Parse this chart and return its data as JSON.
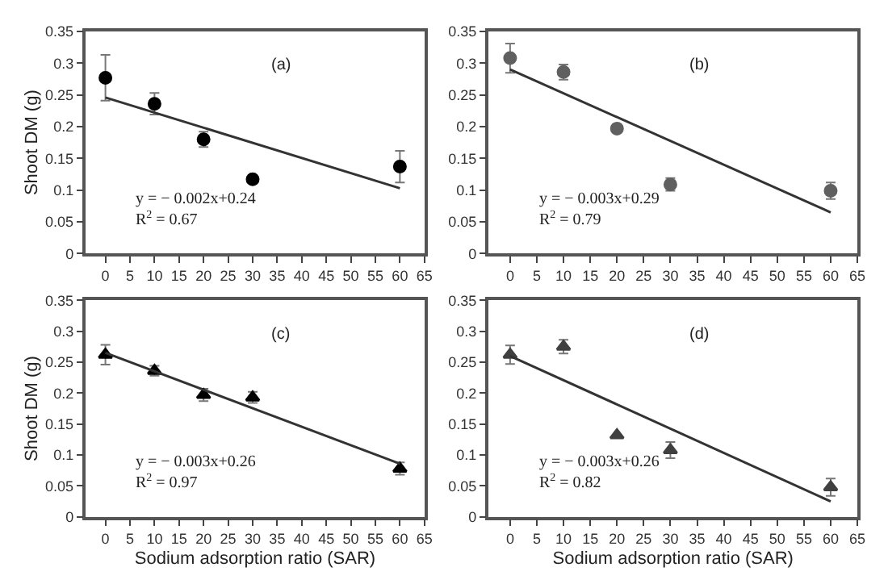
{
  "chart_data": [
    {
      "type": "scatter",
      "ylabel": "Shoot DM (g)",
      "annotations": [
        "(a)",
        "y = − 0.002x+0.24\nR$^{2}$ = 0.67"
      ],
      "xlim": [
        -4,
        65
      ],
      "xticks": [
        0,
        5,
        10,
        15,
        20,
        25,
        30,
        35,
        40,
        45,
        50,
        55,
        60,
        65
      ],
      "ylim": [
        0,
        0.35
      ],
      "yticks": [
        0,
        0.05,
        0.1,
        0.15,
        0.2,
        0.25,
        0.3,
        0.35
      ],
      "series": [
        {
          "marker": "circle",
          "color": "#000000",
          "x": [
            0,
            10,
            20,
            30,
            60
          ],
          "values": [
            0.277,
            0.236,
            0.18,
            0.117,
            0.137
          ],
          "errors": [
            0.036,
            0.017,
            0.012,
            null,
            0.025
          ]
        },
        {
          "type": "line",
          "color": "#333333",
          "x": [
            0,
            60
          ],
          "values": [
            0.246,
            0.103
          ]
        }
      ]
    },
    {
      "type": "scatter",
      "annotations": [
        "(b)",
        "y = − 0.003x+0.29\nR$^{2}$ = 0.79"
      ],
      "xlim": [
        -4,
        65
      ],
      "xticks": [
        0,
        5,
        10,
        15,
        20,
        25,
        30,
        35,
        40,
        45,
        50,
        55,
        60,
        65
      ],
      "ylim": [
        0,
        0.35
      ],
      "yticks": [
        0,
        0.05,
        0.1,
        0.15,
        0.2,
        0.25,
        0.3,
        0.35
      ],
      "series": [
        {
          "marker": "circle",
          "color": "#606060",
          "x": [
            0,
            10,
            20,
            30,
            60
          ],
          "values": [
            0.308,
            0.286,
            0.197,
            0.109,
            0.099
          ],
          "errors": [
            0.023,
            0.012,
            null,
            0.01,
            0.013
          ]
        },
        {
          "type": "line",
          "color": "#333333",
          "x": [
            0,
            60
          ],
          "values": [
            0.29,
            0.065
          ]
        }
      ]
    },
    {
      "type": "scatter",
      "xlabel": "Sodium adsorption ratio (SAR)",
      "ylabel": "Shoot DM (g)",
      "annotations": [
        "(c)",
        "y = − 0.003x+0.26\nR$^{2}$ = 0.97"
      ],
      "xlim": [
        -4,
        65
      ],
      "xticks": [
        0,
        5,
        10,
        15,
        20,
        25,
        30,
        35,
        40,
        45,
        50,
        55,
        60,
        65
      ],
      "ylim": [
        0,
        0.35
      ],
      "yticks": [
        0,
        0.05,
        0.1,
        0.15,
        0.2,
        0.25,
        0.3,
        0.35
      ],
      "series": [
        {
          "marker": "triangle",
          "color": "#000000",
          "x": [
            0,
            10,
            20,
            30,
            60
          ],
          "values": [
            0.262,
            0.236,
            0.197,
            0.193,
            0.078
          ],
          "errors": [
            0.016,
            0.008,
            0.01,
            0.009,
            0.01
          ]
        },
        {
          "type": "line",
          "color": "#333333",
          "x": [
            0,
            60
          ],
          "values": [
            0.265,
            0.086
          ]
        }
      ]
    },
    {
      "type": "scatter",
      "xlabel": "Sodium adsorption ratio (SAR)",
      "annotations": [
        "(d)",
        "y = − 0.003x+0.26\nR$^{2}$ = 0.82"
      ],
      "xlim": [
        -4,
        65
      ],
      "xticks": [
        0,
        5,
        10,
        15,
        20,
        25,
        30,
        35,
        40,
        45,
        50,
        55,
        60,
        65
      ],
      "ylim": [
        0,
        0.35
      ],
      "yticks": [
        0,
        0.05,
        0.1,
        0.15,
        0.2,
        0.25,
        0.3,
        0.35
      ],
      "series": [
        {
          "marker": "triangle",
          "color": "#404040",
          "x": [
            0,
            10,
            20,
            30,
            60
          ],
          "values": [
            0.262,
            0.275,
            0.132,
            0.108,
            0.048
          ],
          "errors": [
            0.015,
            0.011,
            null,
            0.013,
            0.014
          ]
        },
        {
          "type": "line",
          "color": "#333333",
          "x": [
            0,
            60
          ],
          "values": [
            0.26,
            0.025
          ]
        }
      ]
    }
  ]
}
